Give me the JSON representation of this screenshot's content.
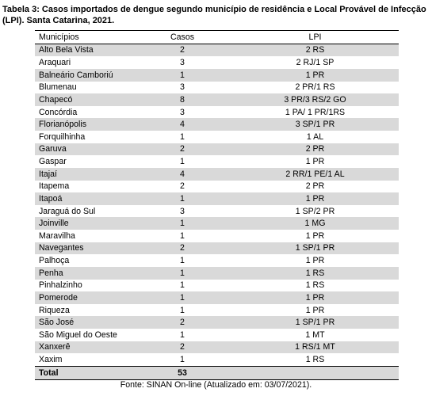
{
  "title": "Tabela 3: Casos importados de dengue segundo município de residência e Local Provável de Infecção (LPI). Santa Catarina, 2021.",
  "headers": [
    "Municípios",
    "Casos",
    "LPI"
  ],
  "rows": [
    {
      "municipio": "Alto Bela Vista",
      "casos": "2",
      "lpi": "2 RS"
    },
    {
      "municipio": "Araquari",
      "casos": "3",
      "lpi": "2 RJ/1 SP"
    },
    {
      "municipio": "Balneário Camboriú",
      "casos": "1",
      "lpi": "1 PR"
    },
    {
      "municipio": "Blumenau",
      "casos": "3",
      "lpi": "2 PR/1 RS"
    },
    {
      "municipio": "Chapecó",
      "casos": "8",
      "lpi": "3 PR/3 RS/2 GO"
    },
    {
      "municipio": "Concórdia",
      "casos": "3",
      "lpi": "1 PA/ 1 PR/1RS"
    },
    {
      "municipio": "Florianópolis",
      "casos": "4",
      "lpi": "3 SP/1 PR"
    },
    {
      "municipio": "Forquilhinha",
      "casos": "1",
      "lpi": "1 AL"
    },
    {
      "municipio": "Garuva",
      "casos": "2",
      "lpi": "2 PR"
    },
    {
      "municipio": "Gaspar",
      "casos": "1",
      "lpi": "1 PR"
    },
    {
      "municipio": "Itajaí",
      "casos": "4",
      "lpi": "2 RR/1 PE/1 AL"
    },
    {
      "municipio": "Itapema",
      "casos": "2",
      "lpi": "2 PR"
    },
    {
      "municipio": "Itapoá",
      "casos": "1",
      "lpi": "1 PR"
    },
    {
      "municipio": "Jaraguá do Sul",
      "casos": "3",
      "lpi": "1 SP/2 PR"
    },
    {
      "municipio": "Joinville",
      "casos": "1",
      "lpi": "1 MG"
    },
    {
      "municipio": "Maravilha",
      "casos": "1",
      "lpi": "1 PR"
    },
    {
      "municipio": "Navegantes",
      "casos": "2",
      "lpi": "1 SP/1 PR"
    },
    {
      "municipio": "Palhoça",
      "casos": "1",
      "lpi": "1 PR"
    },
    {
      "municipio": "Penha",
      "casos": "1",
      "lpi": "1 RS"
    },
    {
      "municipio": "Pinhalzinho",
      "casos": "1",
      "lpi": "1 RS"
    },
    {
      "municipio": "Pomerode",
      "casos": "1",
      "lpi": "1 PR"
    },
    {
      "municipio": "Riqueza",
      "casos": "1",
      "lpi": "1 PR"
    },
    {
      "municipio": "São José",
      "casos": "2",
      "lpi": "1 SP/1 PR"
    },
    {
      "municipio": "São Miguel do Oeste",
      "casos": "1",
      "lpi": "1 MT"
    },
    {
      "municipio": "Xanxerê",
      "casos": "2",
      "lpi": "1 RS/1 MT"
    },
    {
      "municipio": "Xaxim",
      "casos": "1",
      "lpi": "1 RS"
    }
  ],
  "total": {
    "label": "Total",
    "casos": "53",
    "lpi": ""
  },
  "source": "Fonte: SINAN On-line (Atualizado em: 03/07/2021).",
  "colors": {
    "shade": "#d9d9d9",
    "rule": "#000000"
  }
}
